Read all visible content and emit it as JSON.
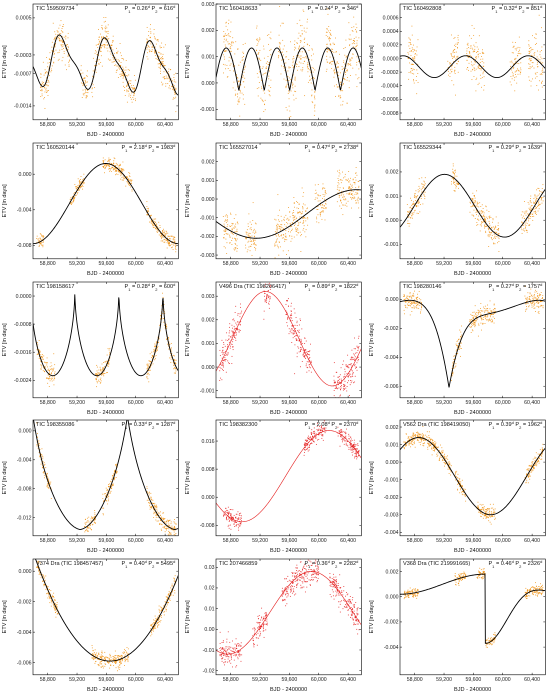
{
  "shared": {
    "xlabel": "BJD - 2400000",
    "ylabel": "ETV [in days]",
    "x_ticks": [
      58800,
      59200,
      59600,
      60000,
      60400
    ],
    "x_tick_labels": [
      "58,800",
      "59,200",
      "59,600",
      "60,000",
      "60,400"
    ],
    "xlim": [
      58600,
      60580
    ]
  },
  "chart_data": [
    {
      "type": "scatter",
      "name": "TIC 159509734",
      "p1_label": "P",
      "p1_sub": "1",
      "p1_val": " = 0.26",
      "p1_unit": "d",
      "p2_label": " P",
      "p2_sub": "2",
      "p2_val": " = 616",
      "p2_unit": "d",
      "ylim": [
        -0.0017,
        0.0008
      ],
      "y_ticks": [
        0.0005,
        -0.0003,
        -0.0007,
        -0.0014
      ],
      "y_tick_labels": [
        "0.0005",
        "-0.0003",
        "-0.0007",
        "-0.0014"
      ],
      "point_color": "#f0900f",
      "model_color": "#000000",
      "segments": [
        [
          58700,
          59100
        ],
        [
          59250,
          59350
        ],
        [
          59400,
          60000
        ],
        [
          60150,
          60550
        ]
      ],
      "model": {
        "kind": "sine",
        "base": -0.0005,
        "amp": 0.0005,
        "period": 616,
        "phase": 0.6,
        "trend": -1e-07,
        "amp2": 0.00015
      },
      "scatter": 0.00018
    },
    {
      "type": "scatter",
      "name": "TIC 160418633",
      "p1_label": "P",
      "p1_sub": "1",
      "p1_val": " = 0.24",
      "p1_unit": "d",
      "p2_label": " P",
      "p2_sub": "2",
      "p2_val": " = 346",
      "p2_unit": "d",
      "ylim": [
        -0.0014,
        0.003
      ],
      "y_ticks": [
        0.003,
        0.002,
        0.001,
        0.0,
        -0.001
      ],
      "y_tick_labels": [
        "0.003",
        "0.002",
        "0.001",
        "0.000",
        "-0.001"
      ],
      "point_color": "#f0900f",
      "model_color": "#000000",
      "segments": [
        [
          58700,
          59000
        ],
        [
          59150,
          59350
        ],
        [
          59450,
          59950
        ],
        [
          60100,
          60550
        ]
      ],
      "model": {
        "kind": "cusp",
        "base": 0.0006,
        "amp": 0.0018,
        "period": 346,
        "phase": 0.1,
        "trend": 0
      },
      "scatter": 0.0006
    },
    {
      "type": "scatter",
      "name": "TIC 160492808",
      "p1_label": "P",
      "p1_sub": "1",
      "p1_val": " = 0.32",
      "p1_unit": "d",
      "p2_label": " P",
      "p2_sub": "2",
      "p2_val": " = 851",
      "p2_unit": "d",
      "ylim": [
        -0.0009,
        0.0008
      ],
      "y_ticks": [
        0.0006,
        0.0004,
        0.0002,
        0.0,
        -0.0002,
        -0.0004,
        -0.0006,
        -0.0008
      ],
      "y_tick_labels": [
        "0.0006",
        "0.0004",
        "0.0002",
        "0.0000",
        "-0.0002",
        "-0.0004",
        "-0.0006",
        "-0.0008"
      ],
      "point_color": "#f0900f",
      "model_color": "#000000",
      "segments": [
        [
          58700,
          58850
        ],
        [
          59250,
          59400
        ],
        [
          59500,
          59750
        ],
        [
          60100,
          60250
        ],
        [
          60350,
          60550
        ]
      ],
      "model": {
        "kind": "sine",
        "base": -0.00012,
        "amp": 0.00016,
        "period": 851,
        "phase": 0.2,
        "trend": 0
      },
      "scatter": 0.00018
    },
    {
      "type": "scatter",
      "name": "TIC 160520144",
      "p1_label": "P",
      "p1_sub": "1",
      "p1_val": " = 2.18",
      "p1_unit": "d",
      "p2_label": " P",
      "p2_sub": "2",
      "p2_val": " = 1983",
      "p2_unit": "d",
      "ylim": [
        -0.0095,
        0.0035
      ],
      "y_ticks": [
        0.0,
        -0.004,
        -0.008
      ],
      "y_tick_labels": [
        "0.000",
        "-0.004",
        "-0.008"
      ],
      "point_color": "#f0900f",
      "model_color": "#000000",
      "segments": [
        [
          58650,
          58750
        ],
        [
          59100,
          59300
        ],
        [
          59550,
          59950
        ],
        [
          60150,
          60550
        ]
      ],
      "model": {
        "kind": "sine",
        "base": -0.0033,
        "amp": 0.0045,
        "period": 1983,
        "phase": 0.75,
        "trend": 0
      },
      "scatter": 0.0004
    },
    {
      "type": "scatter",
      "name": "TIC 165527014",
      "p1_label": "P",
      "p1_sub": "1",
      "p1_val": " = 0.47",
      "p1_unit": "d",
      "p2_label": " P",
      "p2_sub": "2",
      "p2_val": " = 2738",
      "p2_unit": "d",
      "ylim": [
        -0.0032,
        0.003
      ],
      "y_ticks": [
        0.002,
        0.001,
        0.0,
        -0.001,
        -0.002,
        -0.003
      ],
      "y_tick_labels": [
        "0.002",
        "0.001",
        "0.000",
        "-0.001",
        "-0.002",
        "-0.003"
      ],
      "point_color": "#f0900f",
      "model_color": "#000000",
      "segments": [
        [
          58700,
          58900
        ],
        [
          59000,
          59150
        ],
        [
          59400,
          59850
        ],
        [
          59950,
          60100
        ],
        [
          60250,
          60550
        ]
      ],
      "model": {
        "kind": "sine",
        "base": -0.0008,
        "amp": 0.0013,
        "period": 2738,
        "phase": 0.55,
        "trend": 0
      },
      "scatter": 0.00055
    },
    {
      "type": "scatter",
      "name": "TIC 165529344",
      "p1_label": "P",
      "p1_sub": "1",
      "p1_val": " = 0.29",
      "p1_unit": "d",
      "p2_label": " P",
      "p2_sub": "2",
      "p2_val": " = 1639",
      "p2_unit": "d",
      "ylim": [
        -0.0016,
        0.0032
      ],
      "y_ticks": [
        0.002,
        0.001,
        0.0,
        -0.001
      ],
      "y_tick_labels": [
        "0.002",
        "0.001",
        "0.000",
        "-0.001"
      ],
      "point_color": "#f0900f",
      "model_color": "#000000",
      "segments": [
        [
          58700,
          58950
        ],
        [
          59300,
          59400
        ],
        [
          59550,
          59950
        ],
        [
          60250,
          60550
        ]
      ],
      "model": {
        "kind": "sine",
        "base": 0.0006,
        "amp": 0.0013,
        "period": 1639,
        "phase": 0.88,
        "trend": 0
      },
      "scatter": 0.0003
    },
    {
      "type": "scatter",
      "name": "TIC 198158617",
      "p1_label": "P",
      "p1_sub": "1",
      "p1_val": " = 0.28",
      "p1_unit": "d",
      "p2_label": " P",
      "p2_sub": "2",
      "p2_val": " = 600",
      "p2_unit": "d",
      "ylim": [
        -0.0029,
        0.0004
      ],
      "y_ticks": [
        0.0,
        -0.0008,
        -0.0016,
        -0.0024
      ],
      "y_tick_labels": [
        "0.0000",
        "-0.0008",
        "-0.0016",
        "-0.0024"
      ],
      "point_color": "#f0900f",
      "model_color": "#000000",
      "segments": [
        [
          58650,
          58900
        ],
        [
          59450,
          59650
        ],
        [
          60150,
          60550
        ]
      ],
      "model": {
        "kind": "cuspdown",
        "base": 0.0002,
        "amp": 0.0026,
        "period": 600,
        "phase": 0.05,
        "trend": 0
      },
      "scatter": 0.00015
    },
    {
      "type": "scatter",
      "name": "V496 Dra (TIC 198206417)",
      "p1_label": "P",
      "p1_sub": "1",
      "p1_val": " = 0.89",
      "p1_unit": "d",
      "p2_label": " P",
      "p2_sub": "2",
      "p2_val": " = 1822",
      "p2_unit": "d",
      "ylim": [
        -0.0013,
        0.0036
      ],
      "y_ticks": [
        0.003,
        0.002,
        0.001,
        0.0,
        -0.001
      ],
      "y_tick_labels": [
        "0.003",
        "0.002",
        "0.001",
        "0.000",
        "-0.001"
      ],
      "point_color": "#e41a1a",
      "model_color": "#e41a1a",
      "segments": [
        [
          58650,
          58950
        ],
        [
          59250,
          59350
        ],
        [
          59550,
          59900
        ],
        [
          60200,
          60550
        ]
      ],
      "model": {
        "kind": "sine",
        "base": 0.0012,
        "amp": 0.002,
        "period": 1822,
        "phase": 0.88,
        "trend": 0
      },
      "scatter": 0.0004
    },
    {
      "type": "scatter",
      "name": "TIC 198280146",
      "p1_label": "P",
      "p1_sub": "1",
      "p1_val": " = 0.27",
      "p1_unit": "d",
      "p2_label": " P",
      "p2_sub": "2",
      "p2_val": " = 1757",
      "p2_unit": "d",
      "ylim": [
        -0.0068,
        0.0012
      ],
      "y_ticks": [
        0.0,
        -0.002,
        -0.004,
        -0.006
      ],
      "y_tick_labels": [
        "0.000",
        "-0.002",
        "-0.004",
        "-0.006"
      ],
      "point_color": "#f0900f",
      "model_color": "#000000",
      "segments": [
        [
          58650,
          58900
        ],
        [
          59300,
          59450
        ],
        [
          59550,
          59900
        ],
        [
          60300,
          60550
        ]
      ],
      "model": {
        "kind": "ecc",
        "base": -0.0005,
        "amp": 0.0056,
        "period": 1757,
        "phase": 0.12,
        "trend": 0
      },
      "scatter": 0.00035
    },
    {
      "type": "scatter",
      "name": "TIC 198355086",
      "p1_label": "P",
      "p1_sub": "1",
      "p1_val": " = 0.33",
      "p1_unit": "d",
      "p2_label": " P",
      "p2_sub": "2",
      "p2_val": " = 1287",
      "p2_unit": "d",
      "ylim": [
        -0.0145,
        0.0015
      ],
      "y_ticks": [
        0.0,
        -0.004,
        -0.008,
        -0.012
      ],
      "y_tick_labels": [
        "0.000",
        "-0.004",
        "-0.008",
        "-0.012"
      ],
      "point_color": "#f0900f",
      "model_color": "#000000",
      "segments": [
        [
          58650,
          58850
        ],
        [
          59300,
          59450
        ],
        [
          59550,
          59750
        ],
        [
          60150,
          60550
        ]
      ],
      "model": {
        "kind": "spike",
        "base": -0.012,
        "amp": 0.012,
        "period": 1287,
        "phase": 0.0,
        "trend": 0
      },
      "scatter": 0.0006
    },
    {
      "type": "scatter",
      "name": "TIC 198382300",
      "p1_label": "P",
      "p1_sub": "1",
      "p1_val": " = 2.08",
      "p1_unit": "d",
      "p2_label": " P",
      "p2_sub": "2",
      "p2_val": " = 2370",
      "p2_unit": "d",
      "ylim": [
        -0.011,
        0.022
      ],
      "y_ticks": [
        0.016,
        0.008,
        0.0,
        -0.008
      ],
      "y_tick_labels": [
        "0.016",
        "0.008",
        "0.000",
        "-0.008"
      ],
      "point_color": "#e41a1a",
      "model_color": "#e41a1a",
      "segments": [
        [
          58700,
          58950
        ],
        [
          59800,
          60100
        ],
        [
          60250,
          60550
        ]
      ],
      "model": {
        "kind": "sine",
        "base": 0.006,
        "amp": 0.013,
        "period": 2370,
        "phase": 0.6,
        "trend": 0
      },
      "scatter": 0.0012
    },
    {
      "type": "scatter",
      "name": "V562 Dra (TIC 198419050)",
      "p1_label": "P",
      "p1_sub": "1",
      "p1_val": " = 0.39",
      "p1_unit": "d",
      "p2_label": " P",
      "p2_sub": "2",
      "p2_val": " = 1962",
      "p2_unit": "d",
      "ylim": [
        -0.0042,
        0.0024
      ],
      "y_ticks": [
        0.002,
        0.001,
        0.0,
        -0.001,
        -0.002,
        -0.003,
        -0.004
      ],
      "y_tick_labels": [
        "0.002",
        "0.001",
        "0.000",
        "-0.001",
        "-0.002",
        "-0.003",
        "-0.004"
      ],
      "point_color": "#f0900f",
      "model_color": "#000000",
      "segments": [
        [
          58650,
          59300
        ],
        [
          59350,
          59500
        ],
        [
          59650,
          59900
        ],
        [
          60300,
          60550
        ]
      ],
      "model": {
        "kind": "sine",
        "base": -0.0008,
        "amp": 0.0022,
        "period": 1962,
        "phase": 0.12,
        "trend": 0
      },
      "scatter": 0.0002
    },
    {
      "type": "scatter",
      "name": "V374 Dra (TIC 198457457)",
      "p1_label": "P",
      "p1_sub": "1",
      "p1_val": " = 0.40",
      "p1_unit": "d",
      "p2_label": " P",
      "p2_sub": "2",
      "p2_val": " = 5495",
      "p2_unit": "d",
      "ylim": [
        -0.0068,
        0.0008
      ],
      "y_ticks": [
        0.0,
        -0.002,
        -0.004,
        -0.006
      ],
      "y_tick_labels": [
        "0.000",
        "-0.002",
        "-0.004",
        "-0.006"
      ],
      "point_color": "#f0900f",
      "model_color": "#000000",
      "segments": [
        [
          58650,
          58950
        ],
        [
          59400,
          59900
        ],
        [
          60200,
          60550
        ]
      ],
      "model": {
        "kind": "para",
        "base": -0.0059,
        "amp": 6.5e-09,
        "period": 5495,
        "center": 59650,
        "trend": 0
      },
      "scatter": 0.00025
    },
    {
      "type": "scatter",
      "name": "TIC 207466859",
      "p1_label": "P",
      "p1_sub": "1",
      "p1_val": " = 0.36",
      "p1_unit": "d",
      "p2_label": " P",
      "p2_sub": "2",
      "p2_val": " = 2282",
      "p2_unit": "d",
      "ylim": [
        -0.022,
        0.034
      ],
      "y_ticks": [
        0.03,
        0.02,
        0.01,
        0.0,
        -0.01,
        -0.02
      ],
      "y_tick_labels": [
        "0.03",
        "0.02",
        "0.01",
        "0.00",
        "-0.01",
        "-0.02"
      ],
      "point_color": "#e41a1a",
      "model_color": "#e41a1a",
      "segments": [
        [
          58650,
          58950
        ],
        [
          59100,
          59300
        ],
        [
          59500,
          59700
        ],
        [
          59700,
          60000
        ],
        [
          60150,
          60550
        ]
      ],
      "model": {
        "kind": "sine",
        "base": 0.008,
        "amp": 0.02,
        "period": 2282,
        "phase": 0.68,
        "trend": 0
      },
      "scatter": 0.003
    },
    {
      "type": "scatter",
      "name": "V368 Dra (TIC 219991665)",
      "p1_label": "P",
      "p1_sub": "1",
      "p1_val": " = 0.46",
      "p1_unit": "d",
      "p2_label": " P",
      "p2_sub": "2",
      "p2_val": " = 2326",
      "p2_unit": "d",
      "ylim": [
        -0.0062,
        0.003
      ],
      "y_ticks": [
        0.002,
        0.0,
        -0.002,
        -0.004
      ],
      "y_tick_labels": [
        "0.002",
        "0.000",
        "-0.002",
        "-0.004"
      ],
      "point_color": "#f0900f",
      "model_color": "#000000",
      "segments": [
        [
          58650,
          58850
        ],
        [
          59350,
          59500
        ],
        [
          59650,
          59900
        ],
        [
          60300,
          60550
        ]
      ],
      "model": {
        "kind": "ecc2",
        "base": 0.001,
        "amp": 0.0055,
        "period": 2326,
        "phase": 0.5,
        "trend": 0
      },
      "scatter": 0.0002
    }
  ]
}
